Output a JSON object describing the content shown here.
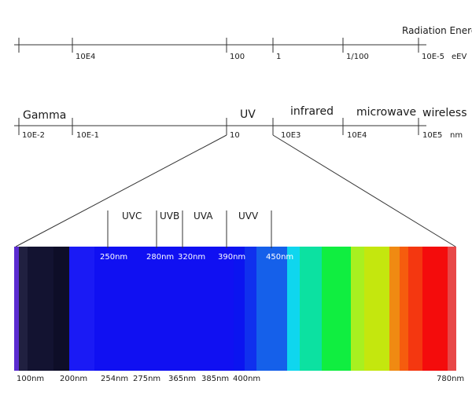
{
  "energy_scale": {
    "title": "Radiation Energy",
    "unit": "eEV",
    "ticks": [
      "10E4",
      "100",
      "1",
      "1/100",
      "10E-5"
    ]
  },
  "wavelength_scale": {
    "unit": "nm",
    "band_labels": [
      "Gamma",
      "UV",
      "infrared",
      "microwave",
      "wireless"
    ],
    "ticks": [
      "10E-2",
      "10E-1",
      "10",
      "10E3",
      "10E4",
      "10E5"
    ]
  },
  "uv_detail": {
    "bands": [
      "UVC",
      "UVB",
      "UVA",
      "UVV"
    ],
    "boundaries": [
      "250nm",
      "280nm",
      "320nm",
      "390nm",
      "450nm"
    ],
    "bottom_ticks": [
      "100nm",
      "200nm",
      "254nm",
      "275nm",
      "365nm",
      "385nm",
      "400nm",
      "780nm"
    ]
  },
  "spectrum_colors": [
    "#5a2bd0",
    "#202040",
    "#131331",
    "#0e0e28",
    "#1a1af5",
    "#1010f2",
    "#0b14f0",
    "#1030ee",
    "#1560ea",
    "#0fd6ee",
    "#0ce1a1",
    "#10ee40",
    "#a8f020",
    "#c4e70e",
    "#f08a12",
    "#f65c0e",
    "#f43710",
    "#f40c0c",
    "#e84848"
  ]
}
